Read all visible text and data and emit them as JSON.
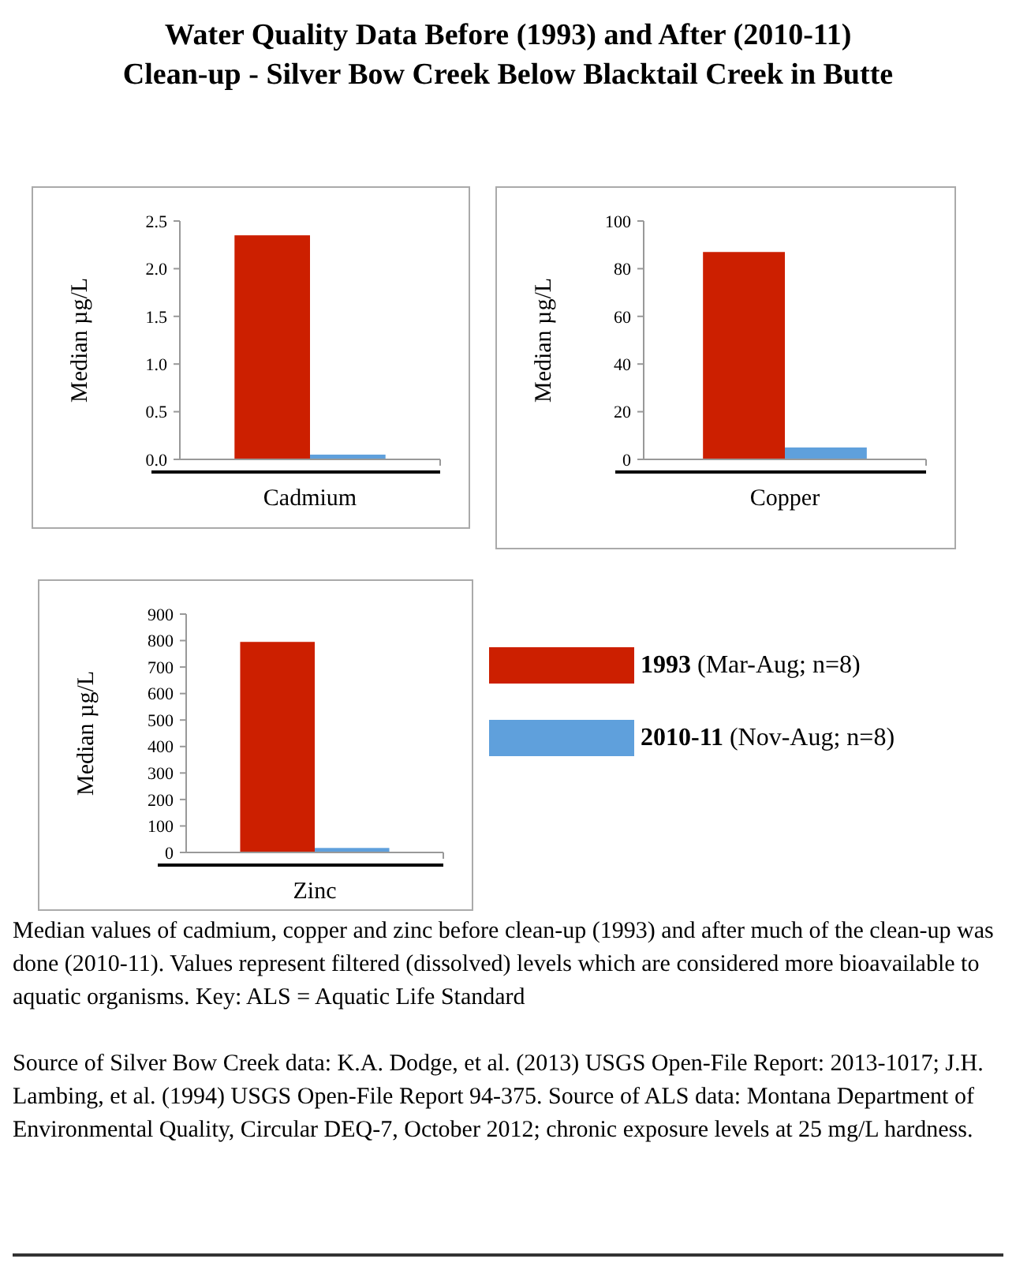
{
  "chart_data": [
    {
      "type": "bar",
      "title": "Water Quality Data Before (1993) and After (2010-11)\nClean-up - Silver Bow Creek Below Blacktail Creek in Butte",
      "categories": [
        "Cadmium"
      ],
      "ylabel": "Median µg/L",
      "ylim": [
        0,
        2.5
      ],
      "yticks": [
        {
          "value": 0,
          "label": "0.0"
        },
        {
          "value": 0.5,
          "label": "0.5"
        },
        {
          "value": 1,
          "label": "1.0"
        },
        {
          "value": 1.5,
          "label": "1.5"
        },
        {
          "value": 2,
          "label": "2.0"
        },
        {
          "value": 2.5,
          "label": "2.5"
        }
      ],
      "series": [
        {
          "color": "#cc1f00",
          "values": [
            2.35
          ]
        },
        {
          "color": "#5fa0dc",
          "values": [
            0.05
          ]
        }
      ]
    },
    {
      "type": "bar",
      "categories": [
        "Copper"
      ],
      "ylabel": "Median µg/L",
      "ylim": [
        0,
        100
      ],
      "yticks": [
        0,
        20,
        40,
        60,
        80,
        100
      ],
      "series": [
        {
          "color": "#cc1f00",
          "values": [
            87
          ]
        },
        {
          "color": "#5fa0dc",
          "values": [
            5
          ]
        }
      ]
    },
    {
      "type": "bar",
      "categories": [
        "Zinc"
      ],
      "ylabel": "Median µg/L",
      "ylim": [
        0,
        900
      ],
      "yticks": [
        0,
        100,
        200,
        300,
        400,
        500,
        600,
        700,
        800,
        900
      ],
      "legend": "right",
      "series": [
        {
          "name": "1993 (Mar-Aug; n=8)",
          "color": "#cc1f00",
          "values": [
            795
          ]
        },
        {
          "name": "2010-11 (Nov-Aug; n=8)",
          "color": "#5fa0dc",
          "values": [
            17
          ]
        }
      ],
      "annotations": [
        "Median values of cadmium, copper and zinc before clean-up (1993) and after much of the clean-up was done (2010-11).  Values represent filtered (dissolved) levels which are considered more bioavailable to aquatic organisms.  Key:  ALS = Aquatic Life Standard",
        "Source of Silver Bow Creek data: K.A. Dodge, et al. (2013) USGS Open-File Report: 2013-1017; J.H. Lambing, et al. (1994) USGS Open-File Report 94-375. Source of ALS data:  Montana Department of Environmental Quality, Circular DEQ-7, October 2012; chronic exposure levels at 25 mg/L hardness."
      ]
    }
  ]
}
